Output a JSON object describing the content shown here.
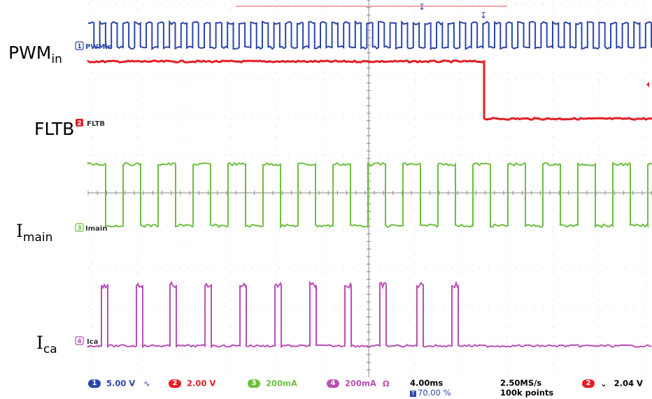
{
  "labels": {
    "pwm_main": "PWM",
    "pwm_sub": "in",
    "fltb": "FLTB",
    "imain_main": "I",
    "imain_sub": "main",
    "ica_main": "I",
    "ica_sub": "ca"
  },
  "channels": [
    {
      "number": "1",
      "trace_label": "PWMin",
      "color": "#2c46a8",
      "scale": "5.00 V",
      "coupling_symbol": "∿"
    },
    {
      "number": "2",
      "trace_label": "FLTB",
      "color": "#e51e25",
      "scale": "2.00 V"
    },
    {
      "number": "3",
      "trace_label": "Imain",
      "color": "#6dbf3f",
      "scale": "200mA"
    },
    {
      "number": "4",
      "trace_label": "Ica",
      "color": "#b94fb5",
      "scale": "200mA",
      "impedance_symbol": "Ω"
    }
  ],
  "timebase": {
    "per_div": "4.00ms",
    "trigger_position": "70.00 %",
    "trigger_pos_icon": "T"
  },
  "acquisition": {
    "sample_rate": "2.50MS/s",
    "record_length": "100k points"
  },
  "trigger": {
    "source": "2",
    "slope_symbol": "⌄",
    "level": "2.04 V"
  }
}
